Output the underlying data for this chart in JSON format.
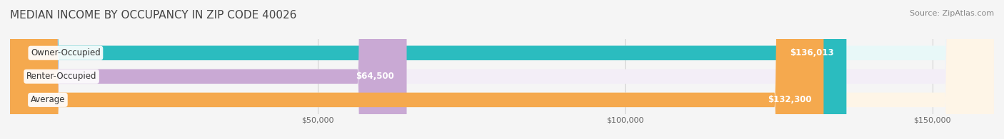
{
  "title": "MEDIAN INCOME BY OCCUPANCY IN ZIP CODE 40026",
  "source": "Source: ZipAtlas.com",
  "categories": [
    "Owner-Occupied",
    "Renter-Occupied",
    "Average"
  ],
  "values": [
    136013,
    64500,
    132300
  ],
  "labels": [
    "$136,013",
    "$64,500",
    "$132,300"
  ],
  "bar_colors": [
    "#2bbcbf",
    "#c9a9d4",
    "#f5a94e"
  ],
  "bar_background_colors": [
    "#e8f8f8",
    "#f3eef7",
    "#fef5e7"
  ],
  "xmax": 160000,
  "xticks": [
    50000,
    100000,
    150000
  ],
  "xticklabels": [
    "$50,000",
    "$100,000",
    "$150,000"
  ],
  "background_color": "#f5f5f5",
  "bar_background": "#ececec",
  "title_fontsize": 11,
  "source_fontsize": 8,
  "label_fontsize": 8.5,
  "category_fontsize": 8.5,
  "bar_height": 0.62,
  "bar_gap": 0.38
}
